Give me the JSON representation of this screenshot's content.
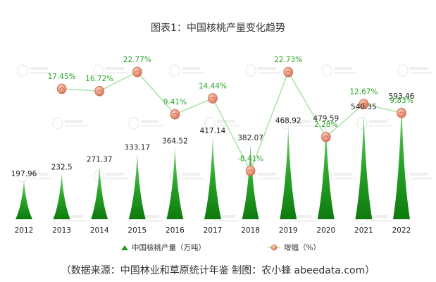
{
  "chart_data": {
    "type": "bar",
    "title": "图表1：中国核桃产量变化趋势",
    "categories": [
      "2012",
      "2013",
      "2014",
      "2015",
      "2016",
      "2017",
      "2018",
      "2019",
      "2020",
      "2021",
      "2022"
    ],
    "series": [
      {
        "name": "中国核桃产量（万吨）",
        "type": "bar",
        "values": [
          197.96,
          232.5,
          271.37,
          333.17,
          364.52,
          417.14,
          382.07,
          468.92,
          479.59,
          540.35,
          593.46
        ],
        "labels": [
          "197.96",
          "232.5",
          "271.37",
          "333.17",
          "364.52",
          "417.14",
          "382.07",
          "468.92",
          "479.59",
          "540.35",
          "593.46"
        ],
        "color": "#1e9a1e"
      },
      {
        "name": "增幅（%）",
        "type": "line",
        "values": [
          null,
          17.45,
          16.72,
          22.77,
          9.41,
          14.44,
          -8.41,
          22.73,
          2.28,
          12.67,
          9.83
        ],
        "labels": [
          "",
          "17.45%",
          "16.72%",
          "22.77%",
          "9.41%",
          "14.44%",
          "-8.41%",
          "22.73%",
          "2.28%",
          "12.67%",
          "9.83%"
        ],
        "color": "#a9e2a9"
      }
    ],
    "legend_position": "bottom",
    "grid": false
  },
  "source": "（数据来源：中国林业和草原统计年鉴  制图：农小蜂 abeedata.com）",
  "colors": {
    "bar": "#1e9a1e",
    "line": "#a9e2a9",
    "marker": "#e8957a",
    "percent_text": "#2aa52a"
  }
}
